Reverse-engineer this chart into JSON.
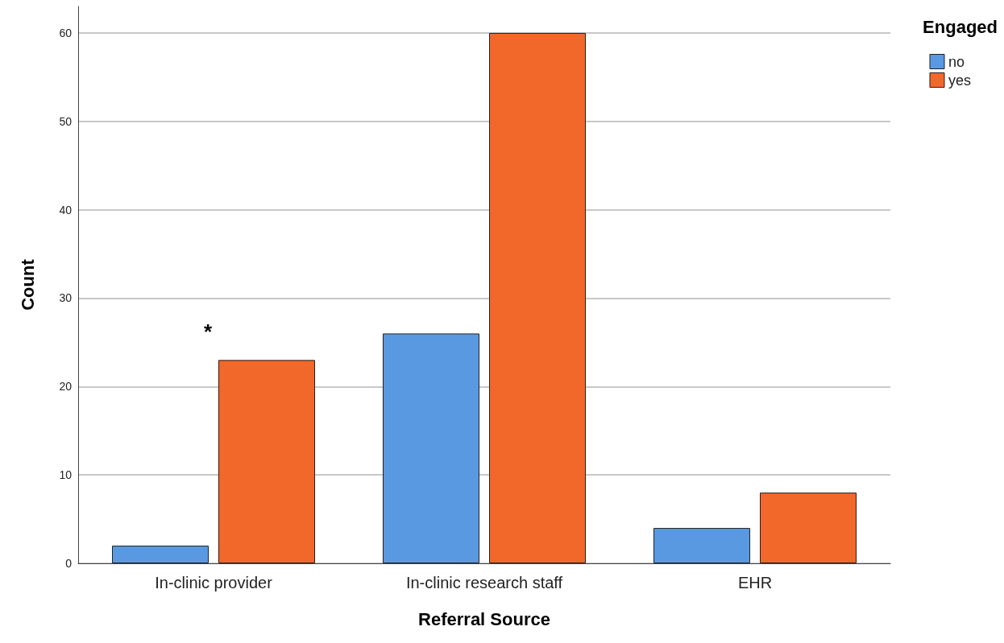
{
  "chart_data": {
    "type": "bar",
    "xlabel": "Referral Source",
    "ylabel": "Count",
    "legend_title": "Engaged",
    "categories": [
      "In-clinic provider",
      "In-clinic research staff",
      "EHR"
    ],
    "series": [
      {
        "name": "no",
        "color": "#5899e2",
        "values": [
          2,
          26,
          4
        ]
      },
      {
        "name": "yes",
        "color": "#f2672a",
        "values": [
          23,
          60,
          8
        ]
      }
    ],
    "ylim": [
      0,
      63
    ],
    "yticks": [
      0,
      10,
      20,
      30,
      40,
      50,
      60
    ],
    "grid": "y",
    "legend": "top right",
    "annotations": [
      "*"
    ]
  }
}
